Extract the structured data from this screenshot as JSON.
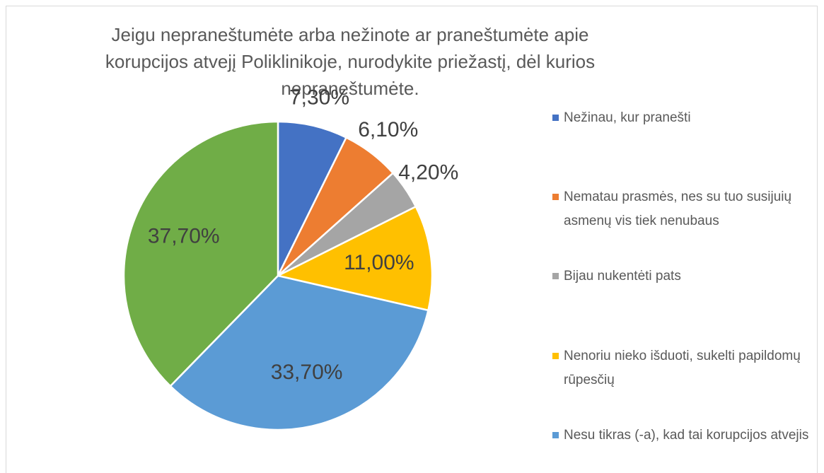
{
  "chart_data": {
    "type": "pie",
    "title": "Jeigu nepraneštumėte arba nežinote ar praneštumėte apie korupcijos atvejį Poliklinikoje, nurodykite priežastį, dėl kurios nepraneštumėte.",
    "categories": [
      "Nežinau, kur pranešti",
      "Nematau prasmės, nes su tuo susijuių asmenų vis tiek nenubaus",
      "Bijau nukentėti pats",
      "Nenoriu nieko išduoti, sukelti papildomų rūpesčių",
      "Nesu tikras (-a), kad tai korupcijos atvejis",
      null
    ],
    "values": [
      7.3,
      6.1,
      4.2,
      11.0,
      33.7,
      37.7
    ],
    "value_labels": [
      "7,30%",
      "6,10%",
      "4,20%",
      "11,00%",
      "33,70%",
      "37,70%"
    ],
    "colors": [
      "#4472c4",
      "#ed7d31",
      "#a5a5a5",
      "#ffc000",
      "#5b9bd5",
      "#70ad47"
    ],
    "legend": "right"
  }
}
